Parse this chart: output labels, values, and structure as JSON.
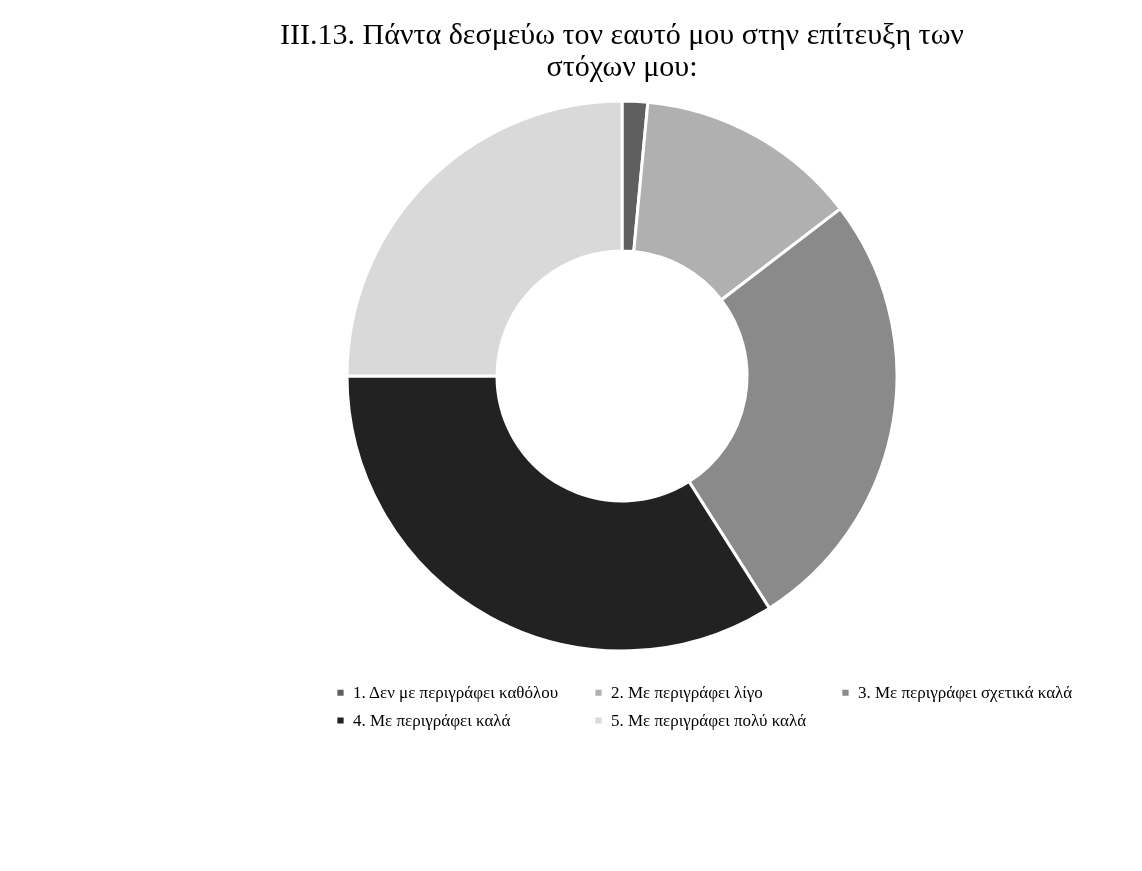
{
  "chart_data": {
    "type": "donut",
    "title": "III.13. Πάντα δεσμεύω τον εαυτό μου στην επίτευξη των στόχων μου:",
    "categories": [
      "1. Δεν με περιγράφει καθόλου",
      "2. Με περιγράφει λίγο",
      "3. Με περιγράφει σχετικά καλά",
      "4. Με περιγράφει καλά",
      "5. Με περιγράφει πολύ καλά"
    ],
    "values": [
      1.5,
      13.1,
      26.4,
      34,
      25
    ],
    "colors": [
      "#5f5f5f",
      "#b0b0b0",
      "#8a8a8a",
      "#222222",
      "#d9d9d9"
    ],
    "legend": "bottom"
  }
}
